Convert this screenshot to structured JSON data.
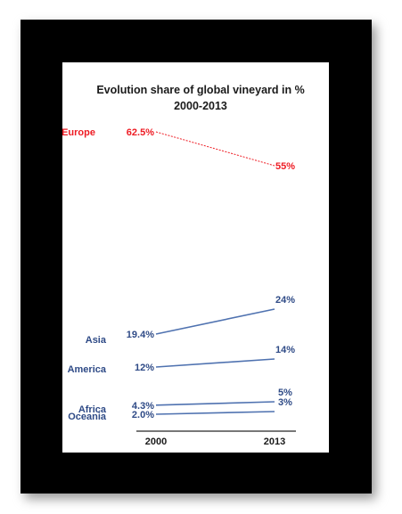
{
  "chart_data": {
    "type": "line",
    "title": "Evolution share of global vineyard in %",
    "subtitle": "2000-2013",
    "x": [
      "2000",
      "2013"
    ],
    "series": [
      {
        "name": "Europe",
        "values": [
          62.5,
          55
        ],
        "labels": [
          "62.5%",
          "55%"
        ],
        "color": "#ee1c24",
        "dashed": true
      },
      {
        "name": "Asia",
        "values": [
          19.4,
          24
        ],
        "labels": [
          "19.4%",
          "24%"
        ],
        "color": "#4f72b0",
        "dashed": false
      },
      {
        "name": "America",
        "values": [
          12,
          14
        ],
        "labels": [
          "12%",
          "14%"
        ],
        "color": "#4f72b0",
        "dashed": false
      },
      {
        "name": "Africa",
        "values": [
          4.3,
          5
        ],
        "labels": [
          "4.3%",
          "5%"
        ],
        "color": "#4f72b0",
        "dashed": false
      },
      {
        "name": "Oceania",
        "values": [
          2.0,
          3
        ],
        "labels": [
          "2.0%",
          "3%"
        ],
        "color": "#4f72b0",
        "dashed": false
      }
    ],
    "ylim": [
      0,
      70
    ],
    "legend": "none",
    "grid": false
  },
  "colors": {
    "frame": "#000000",
    "europe": "#ee1c24",
    "others": "#2e4a86"
  }
}
